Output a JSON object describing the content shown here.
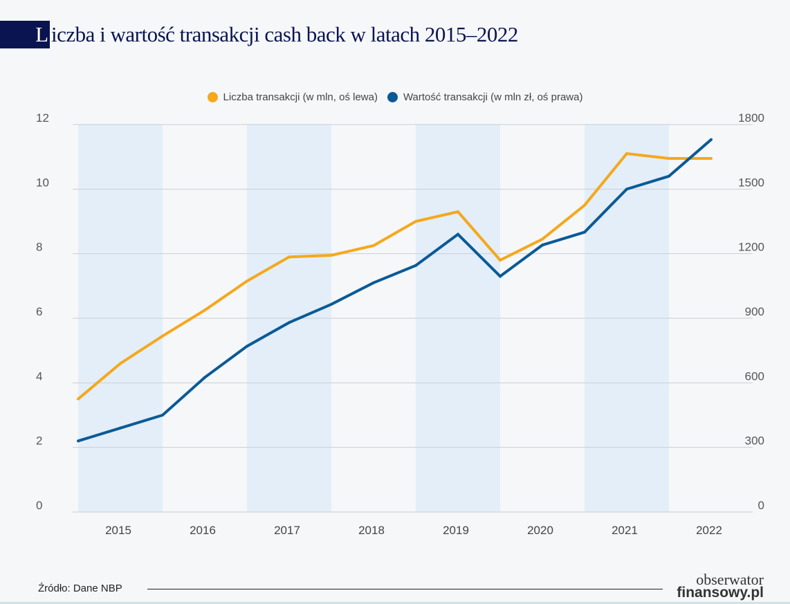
{
  "title": {
    "initial": "L",
    "rest": "iczba i wartość transakcji cash back w latach 2015–2022"
  },
  "chart_data": {
    "type": "line",
    "title": "Liczba i wartość transakcji cash back w latach 2015–2022",
    "x": [
      2015,
      2015.5,
      2016,
      2016.5,
      2017,
      2017.5,
      2018,
      2018.5,
      2019,
      2019.5,
      2020,
      2020.5,
      2021,
      2021.5,
      2022,
      2022.5
    ],
    "x_ticks": [
      "2015",
      "2016",
      "2017",
      "2018",
      "2019",
      "2020",
      "2021",
      "2022"
    ],
    "y_left": {
      "range": [
        0,
        12
      ],
      "ticks": [
        "0",
        "2",
        "4",
        "6",
        "8",
        "10",
        "12"
      ]
    },
    "y_right": {
      "range": [
        0,
        1800
      ],
      "ticks": [
        "0",
        "300",
        "600",
        "900",
        "1200",
        "1500",
        "1800"
      ]
    },
    "grid": true,
    "legend_placement": "top-center",
    "series": [
      {
        "name": "Liczba transakcji (w mln, oś lewa)",
        "axis": "left",
        "color": "#f5a81c",
        "values": [
          3.5,
          4.6,
          5.45,
          6.25,
          7.15,
          7.9,
          7.95,
          8.25,
          9.0,
          9.3,
          7.8,
          8.45,
          9.5,
          11.1,
          10.95,
          10.95
        ]
      },
      {
        "name": "Wartość transakcji (w mln zł, oś prawa)",
        "axis": "right",
        "color": "#0a5a96",
        "values": [
          330,
          390,
          450,
          625,
          770,
          880,
          965,
          1065,
          1145,
          1290,
          1095,
          1240,
          1300,
          1500,
          1560,
          1730
        ]
      }
    ]
  },
  "footer": {
    "source": "Źródło: Dane NBP",
    "logo_top": "obserwator",
    "logo_bottom": "finansowy.pl"
  },
  "colors": {
    "band": "#e3eef8",
    "title_box": "#0a1450"
  }
}
